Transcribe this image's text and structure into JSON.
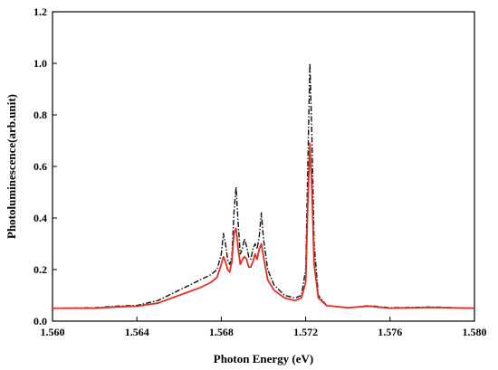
{
  "chart_data": {
    "type": "line",
    "title": "",
    "xlabel": "Photon Energy (eV)",
    "ylabel": "Photoluminescence(arb.unit)",
    "xlim": [
      1.56,
      1.58
    ],
    "ylim": [
      0.0,
      1.2
    ],
    "grid": false,
    "x_tick_labels": [
      "1.560",
      "1.564",
      "1.568",
      "1.572",
      "1.576",
      "1.580"
    ],
    "y_tick_labels": [
      "0.0",
      "0.2",
      "0.4",
      "0.6",
      "0.8",
      "1.0",
      "1.2"
    ],
    "series": [
      {
        "style": "dash-dot",
        "color": "#111111",
        "points": [
          [
            1.56,
            0.05
          ],
          [
            1.562,
            0.052
          ],
          [
            1.563,
            0.058
          ],
          [
            1.564,
            0.061
          ],
          [
            1.565,
            0.08
          ],
          [
            1.566,
            0.12
          ],
          [
            1.567,
            0.16
          ],
          [
            1.5675,
            0.18
          ],
          [
            1.5678,
            0.2
          ],
          [
            1.568,
            0.26
          ],
          [
            1.5681,
            0.34
          ],
          [
            1.5682,
            0.3
          ],
          [
            1.5683,
            0.24
          ],
          [
            1.5684,
            0.22
          ],
          [
            1.5685,
            0.25
          ],
          [
            1.5686,
            0.42
          ],
          [
            1.5687,
            0.52
          ],
          [
            1.5688,
            0.38
          ],
          [
            1.5689,
            0.26
          ],
          [
            1.569,
            0.28
          ],
          [
            1.5691,
            0.32
          ],
          [
            1.5692,
            0.29
          ],
          [
            1.5693,
            0.25
          ],
          [
            1.5694,
            0.24
          ],
          [
            1.5695,
            0.28
          ],
          [
            1.5696,
            0.3
          ],
          [
            1.5697,
            0.28
          ],
          [
            1.5698,
            0.33
          ],
          [
            1.5699,
            0.42
          ],
          [
            1.57,
            0.32
          ],
          [
            1.5702,
            0.2
          ],
          [
            1.5705,
            0.14
          ],
          [
            1.571,
            0.1
          ],
          [
            1.5715,
            0.09
          ],
          [
            1.5718,
            0.1
          ],
          [
            1.572,
            0.2
          ],
          [
            1.5721,
            0.6
          ],
          [
            1.5722,
            1.0
          ],
          [
            1.5723,
            0.7
          ],
          [
            1.5724,
            0.3
          ],
          [
            1.5726,
            0.1
          ],
          [
            1.573,
            0.06
          ],
          [
            1.574,
            0.052
          ],
          [
            1.575,
            0.06
          ],
          [
            1.576,
            0.052
          ],
          [
            1.578,
            0.055
          ],
          [
            1.58,
            0.05
          ]
        ]
      },
      {
        "style": "solid",
        "color": "#e0302a",
        "points": [
          [
            1.56,
            0.05
          ],
          [
            1.562,
            0.05
          ],
          [
            1.563,
            0.055
          ],
          [
            1.564,
            0.058
          ],
          [
            1.565,
            0.07
          ],
          [
            1.566,
            0.1
          ],
          [
            1.567,
            0.13
          ],
          [
            1.5675,
            0.15
          ],
          [
            1.5678,
            0.17
          ],
          [
            1.568,
            0.22
          ],
          [
            1.5681,
            0.25
          ],
          [
            1.5682,
            0.23
          ],
          [
            1.5683,
            0.2
          ],
          [
            1.5684,
            0.19
          ],
          [
            1.5685,
            0.23
          ],
          [
            1.5686,
            0.34
          ],
          [
            1.5687,
            0.36
          ],
          [
            1.5688,
            0.28
          ],
          [
            1.5689,
            0.22
          ],
          [
            1.569,
            0.24
          ],
          [
            1.5691,
            0.25
          ],
          [
            1.5692,
            0.24
          ],
          [
            1.5693,
            0.21
          ],
          [
            1.5694,
            0.21
          ],
          [
            1.5695,
            0.23
          ],
          [
            1.5696,
            0.26
          ],
          [
            1.5697,
            0.24
          ],
          [
            1.5698,
            0.28
          ],
          [
            1.5699,
            0.3
          ],
          [
            1.57,
            0.25
          ],
          [
            1.5702,
            0.16
          ],
          [
            1.5705,
            0.12
          ],
          [
            1.571,
            0.09
          ],
          [
            1.5715,
            0.08
          ],
          [
            1.5718,
            0.09
          ],
          [
            1.572,
            0.15
          ],
          [
            1.5721,
            0.45
          ],
          [
            1.5722,
            0.69
          ],
          [
            1.5723,
            0.5
          ],
          [
            1.5724,
            0.22
          ],
          [
            1.5726,
            0.09
          ],
          [
            1.573,
            0.06
          ],
          [
            1.574,
            0.052
          ],
          [
            1.575,
            0.058
          ],
          [
            1.576,
            0.05
          ],
          [
            1.578,
            0.053
          ],
          [
            1.58,
            0.05
          ]
        ]
      }
    ]
  }
}
